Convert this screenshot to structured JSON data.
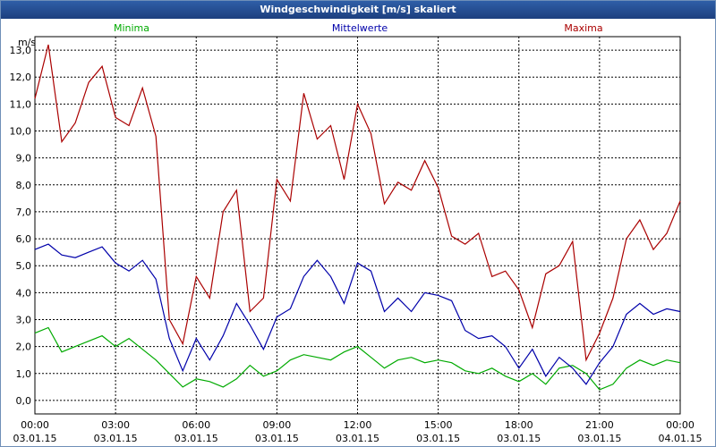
{
  "title": "Windgeschwindigkeit [m/s] skaliert",
  "colors": {
    "min": "#00aa00",
    "avg": "#0000aa",
    "max": "#aa0000"
  },
  "chart_data": {
    "type": "line",
    "title": "Windgeschwindigkeit [m/s] skaliert",
    "ylabel": "m/s",
    "xlabel": "",
    "ylim": [
      -0.5,
      13.5
    ],
    "xlim": [
      0,
      24
    ],
    "grid": true,
    "legend": [
      "Minima",
      "Mittelwerte",
      "Maxima"
    ],
    "yticks": [
      "0,0",
      "1,0",
      "2,0",
      "3,0",
      "4,0",
      "5,0",
      "6,0",
      "7,0",
      "8,0",
      "9,0",
      "10,0",
      "11,0",
      "12,0",
      "13,0"
    ],
    "xticks": [
      {
        "time": "00:00",
        "date": "03.01.15",
        "hour": 0
      },
      {
        "time": "03:00",
        "date": "03.01.15",
        "hour": 3
      },
      {
        "time": "06:00",
        "date": "03.01.15",
        "hour": 6
      },
      {
        "time": "09:00",
        "date": "03.01.15",
        "hour": 9
      },
      {
        "time": "12:00",
        "date": "03.01.15",
        "hour": 12
      },
      {
        "time": "15:00",
        "date": "03.01.15",
        "hour": 15
      },
      {
        "time": "18:00",
        "date": "03.01.15",
        "hour": 18
      },
      {
        "time": "21:00",
        "date": "03.01.15",
        "hour": 21
      },
      {
        "time": "00:00",
        "date": "04.01.15",
        "hour": 24
      }
    ],
    "x": [
      0,
      0.5,
      1,
      1.5,
      2,
      2.5,
      3,
      3.5,
      4,
      4.5,
      5,
      5.5,
      6,
      6.5,
      7,
      7.5,
      8,
      8.5,
      9,
      9.5,
      10,
      10.5,
      11,
      11.5,
      12,
      12.5,
      13,
      13.5,
      14,
      14.5,
      15,
      15.5,
      16,
      16.5,
      17,
      17.5,
      18,
      18.5,
      19,
      19.5,
      20,
      20.5,
      21,
      21.5,
      22,
      22.5,
      23,
      23.5,
      24
    ],
    "series": [
      {
        "name": "Minima",
        "values": [
          2.5,
          2.7,
          1.8,
          2.0,
          2.2,
          2.4,
          2.0,
          2.3,
          1.9,
          1.5,
          1.0,
          0.5,
          0.8,
          0.7,
          0.5,
          0.8,
          1.3,
          0.9,
          1.1,
          1.5,
          1.7,
          1.6,
          1.5,
          1.8,
          2.0,
          1.6,
          1.2,
          1.5,
          1.6,
          1.4,
          1.5,
          1.4,
          1.1,
          1.0,
          1.2,
          0.9,
          0.7,
          1.0,
          0.6,
          1.2,
          1.3,
          1.0,
          0.4,
          0.6,
          1.2,
          1.5,
          1.3,
          1.5,
          1.4
        ]
      },
      {
        "name": "Mittelwerte",
        "values": [
          5.6,
          5.8,
          5.4,
          5.3,
          5.5,
          5.7,
          5.1,
          4.8,
          5.2,
          4.5,
          2.3,
          1.1,
          2.3,
          1.5,
          2.4,
          3.6,
          2.8,
          1.9,
          3.1,
          3.4,
          4.6,
          5.2,
          4.6,
          3.6,
          5.1,
          4.8,
          3.3,
          3.8,
          3.3,
          4.0,
          3.9,
          3.7,
          2.6,
          2.3,
          2.4,
          2.0,
          1.2,
          1.9,
          0.9,
          1.6,
          1.2,
          0.6,
          1.4,
          2.0,
          3.2,
          3.6,
          3.2,
          3.4,
          3.3
        ]
      },
      {
        "name": "Maxima",
        "values": [
          11.2,
          13.2,
          9.6,
          10.3,
          11.8,
          12.4,
          10.5,
          10.2,
          11.6,
          9.8,
          3.0,
          2.1,
          4.6,
          3.8,
          7.0,
          7.8,
          3.3,
          3.8,
          8.2,
          7.4,
          11.4,
          9.7,
          10.2,
          8.2,
          11.0,
          9.9,
          7.3,
          8.1,
          7.8,
          8.9,
          7.9,
          6.1,
          5.8,
          6.2,
          4.6,
          4.8,
          4.1,
          2.7,
          4.7,
          5.0,
          5.9,
          1.5,
          2.5,
          3.8,
          6.0,
          6.7,
          5.6,
          6.2,
          7.4
        ]
      }
    ]
  }
}
